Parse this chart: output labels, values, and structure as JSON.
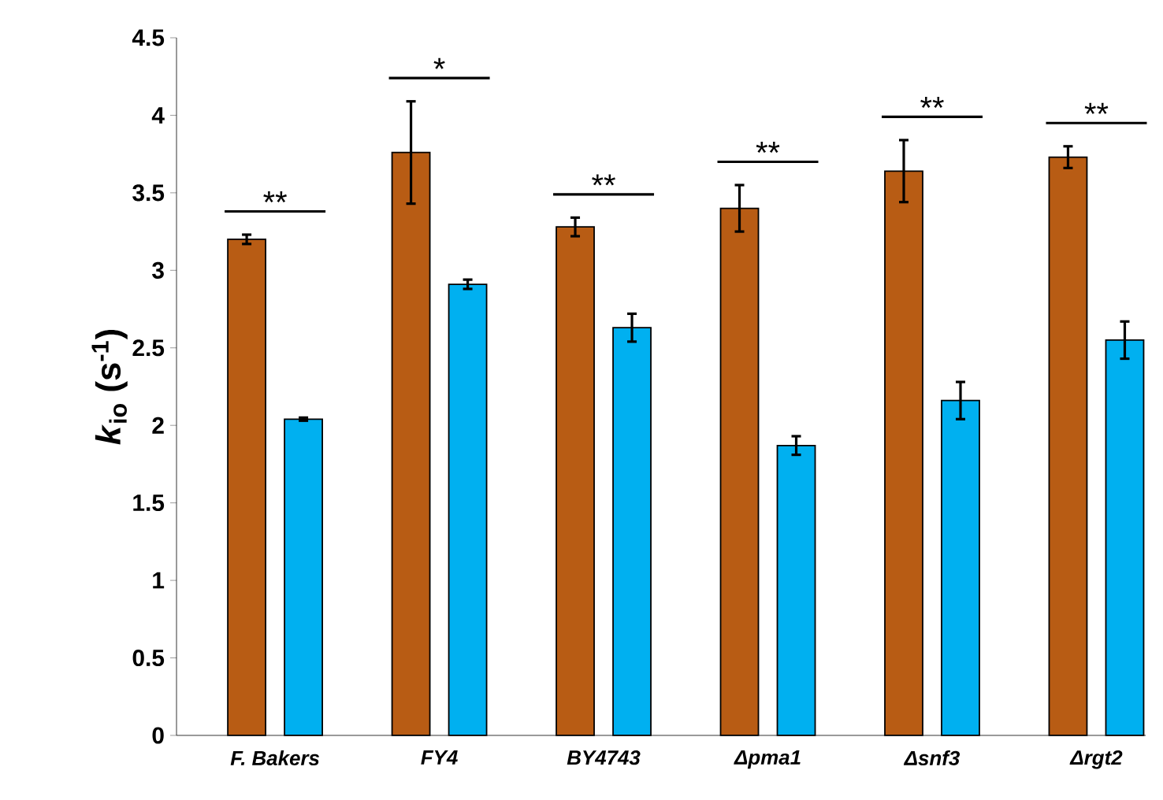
{
  "chart_data": {
    "type": "bar",
    "ylabel": "*k*$_{io}$ (s$^{-1}$)",
    "categories": [
      "F. Bakers",
      "FY4",
      "BY4743",
      "Δpma1",
      "Δsnf3",
      "Δrgt2"
    ],
    "series": [
      {
        "color": "#b85c14",
        "values": [
          3.2,
          3.76,
          3.28,
          3.4,
          3.64,
          3.73
        ],
        "errors": [
          0.03,
          0.33,
          0.06,
          0.15,
          0.2,
          0.07
        ]
      },
      {
        "color": "#00b0f0",
        "values": [
          2.04,
          2.91,
          2.63,
          1.87,
          2.16,
          2.55
        ],
        "errors": [
          0.01,
          0.03,
          0.09,
          0.06,
          0.12,
          0.12
        ]
      }
    ],
    "ylim": [
      0,
      4.5
    ],
    "yticks": [
      0,
      0.5,
      1,
      1.5,
      2,
      2.5,
      3,
      3.5,
      4,
      4.5
    ],
    "grid": false,
    "annotations": [
      "**",
      "*",
      "**",
      "**",
      "**",
      "**"
    ]
  }
}
